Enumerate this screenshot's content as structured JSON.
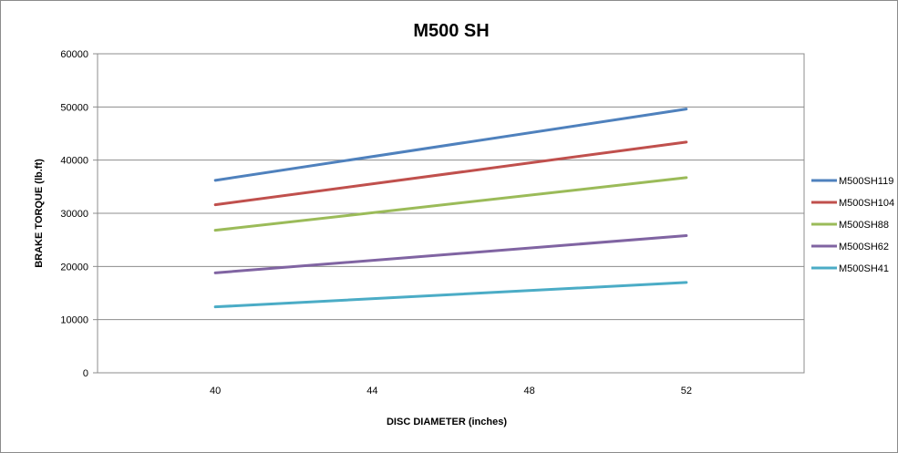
{
  "chart_data": {
    "type": "line",
    "title": "M500 SH",
    "xlabel": "DISC DIAMETER (inches)",
    "ylabel": "BRAKE TORQUE (lb.ft)",
    "x": [
      40,
      52
    ],
    "x_ticks": [
      "40",
      "44",
      "48",
      "52"
    ],
    "x_tick_values": [
      40,
      44,
      48,
      52
    ],
    "xlim": [
      37,
      55
    ],
    "ylim": [
      0,
      60000
    ],
    "y_ticks": [
      "0",
      "10000",
      "20000",
      "30000",
      "40000",
      "50000",
      "60000"
    ],
    "y_tick_values": [
      0,
      10000,
      20000,
      30000,
      40000,
      50000,
      60000
    ],
    "grid": "horizontal",
    "legend_position": "right",
    "series": [
      {
        "name": "M500SH119",
        "color": "#4F81BD",
        "values": [
          36200,
          49600
        ]
      },
      {
        "name": "M500SH104",
        "color": "#C0504D",
        "values": [
          31600,
          43400
        ]
      },
      {
        "name": "M500SH88",
        "color": "#9BBB59",
        "values": [
          26800,
          36700
        ]
      },
      {
        "name": "M500SH62",
        "color": "#8064A2",
        "values": [
          18800,
          25800
        ]
      },
      {
        "name": "M500SH41",
        "color": "#4BACC6",
        "values": [
          12400,
          17000
        ]
      }
    ]
  }
}
